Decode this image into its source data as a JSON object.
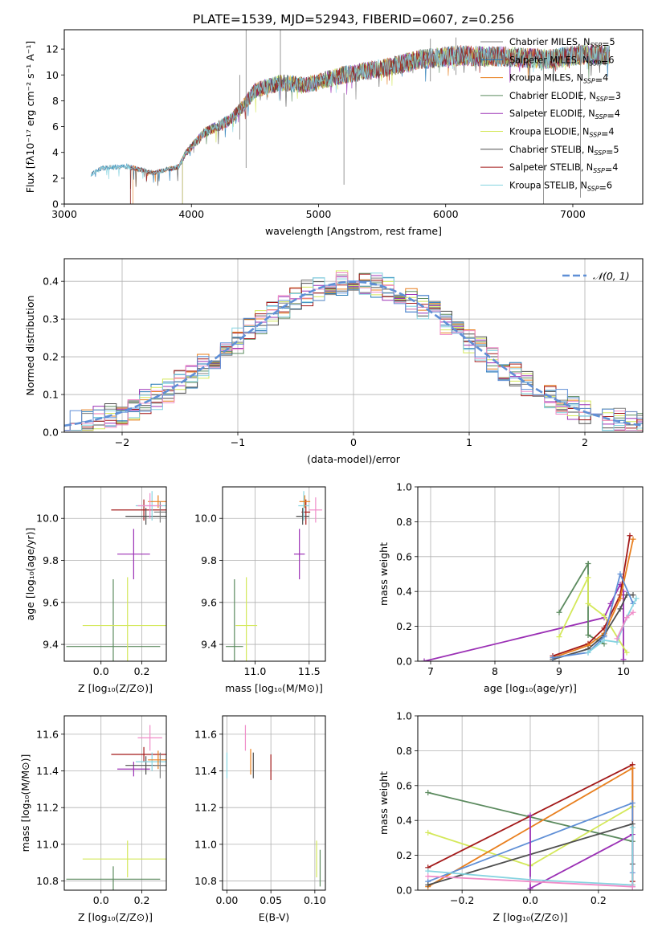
{
  "figure_title": "PLATE=1539, MJD=52943, FIBERID=0607, z=0.256",
  "series_colors": {
    "Chabrier MILES": "#7f7f7f",
    "Salpeter MILES": "#1f77b4",
    "Kroupa MILES": "#e87f1e",
    "Chabrier ELODIE": "#5b8a5e",
    "Salpeter ELODIE": "#9b30b5",
    "Kroupa ELODIE": "#d4e85a",
    "Chabrier STELIB": "#4f4f4f",
    "Salpeter STELIB": "#a31919",
    "Kroupa STELIB": "#86d4e0",
    "extra_pink": "#f08cc8",
    "extra_blue": "#5f8fd6",
    "normal_curve": "#5f8fd6"
  },
  "chart_data": [
    {
      "id": "spectrum",
      "type": "line",
      "xlabel": "wavelength [Angstrom, rest frame]",
      "ylabel": "Flux [fλ10⁻¹⁷ erg cm⁻² s⁻¹ A⁻¹]",
      "xlim": [
        3000,
        7550
      ],
      "ylim": [
        0,
        13.5
      ],
      "xticks": [
        3000,
        4000,
        5000,
        6000,
        7000
      ],
      "yticks": [
        0,
        2,
        4,
        6,
        8,
        10,
        12
      ],
      "legend_position": "top-right",
      "grid": false,
      "continuum": [
        [
          3210,
          2.3
        ],
        [
          3300,
          2.8
        ],
        [
          3500,
          2.9
        ],
        [
          3700,
          2.4
        ],
        [
          3900,
          2.9
        ],
        [
          3960,
          4.0
        ],
        [
          4100,
          5.5
        ],
        [
          4300,
          6.5
        ],
        [
          4400,
          7.5
        ],
        [
          4500,
          8.8
        ],
        [
          4700,
          9.4
        ],
        [
          4900,
          9.2
        ],
        [
          5200,
          10.0
        ],
        [
          5500,
          10.5
        ],
        [
          5800,
          11.2
        ],
        [
          6100,
          11.5
        ],
        [
          6500,
          11.4
        ],
        [
          6800,
          11.2
        ],
        [
          7100,
          11.6
        ],
        [
          7300,
          11.5
        ]
      ],
      "series": [
        {
          "name": "Chabrier MILES",
          "ssp": "5",
          "start": 3210
        },
        {
          "name": "Salpeter MILES",
          "ssp": "6",
          "start": 3210
        },
        {
          "name": "Kroupa MILES",
          "ssp": "4",
          "start": 3540
        },
        {
          "name": "Chabrier ELODIE",
          "ssp": "3",
          "start": 3930
        },
        {
          "name": "Salpeter ELODIE",
          "ssp": "4",
          "start": 3930
        },
        {
          "name": "Kroupa ELODIE",
          "ssp": "4",
          "start": 3930
        },
        {
          "name": "Chabrier STELIB",
          "ssp": "5",
          "start": 3520
        },
        {
          "name": "Salpeter STELIB",
          "ssp": "4",
          "start": 3520
        },
        {
          "name": "Kroupa STELIB",
          "ssp": "6",
          "start": 3210
        }
      ]
    },
    {
      "id": "residual-histogram",
      "type": "line",
      "xlabel": "(data-model)/error",
      "ylabel": "Normed distribution",
      "xlim": [
        -2.5,
        2.5
      ],
      "ylim": [
        0,
        0.46
      ],
      "xticks": [
        -2,
        -1,
        0,
        1,
        2
      ],
      "yticks": [
        0.0,
        0.1,
        0.2,
        0.3,
        0.4
      ],
      "grid": true,
      "legend_position": "top-right",
      "normal_label": "𝒩(0, 1)"
    },
    {
      "id": "age-vs-metallicity",
      "type": "scatter",
      "xlabel": "Z [log₁₀(Z/Z⊙)]",
      "ylabel": "age  [log₁₀(age/yr)]",
      "xlim": [
        -0.18,
        0.32
      ],
      "ylim": [
        9.32,
        10.15
      ],
      "xticks": [
        0.0,
        0.2
      ],
      "yticks": [
        9.4,
        9.6,
        9.8,
        10.0
      ],
      "grid": true,
      "points": [
        {
          "s": "Chabrier ELODIE",
          "x": 0.06,
          "xerr": 0.23,
          "y": 9.39,
          "yerr": 0.32
        },
        {
          "s": "Kroupa ELODIE",
          "x": 0.13,
          "xerr": 0.22,
          "y": 9.49,
          "yerr": 0.23
        },
        {
          "s": "Salpeter ELODIE",
          "x": 0.16,
          "xerr": 0.08,
          "y": 9.83,
          "yerr": 0.12
        },
        {
          "s": "Salpeter STELIB",
          "x": 0.21,
          "xerr": 0.16,
          "y": 10.04,
          "yerr": 0.05
        },
        {
          "s": "Chabrier STELIB",
          "x": 0.22,
          "xerr": 0.1,
          "y": 10.01,
          "yerr": 0.04
        },
        {
          "s": "Kroupa STELIB",
          "x": 0.25,
          "xerr": 0.08,
          "y": 10.06,
          "yerr": 0.07
        },
        {
          "s": "Kroupa MILES",
          "x": 0.28,
          "xerr": 0.05,
          "y": 10.08,
          "yerr": 0.03
        },
        {
          "s": "Chabrier MILES",
          "x": 0.29,
          "xerr": 0.03,
          "y": 10.03,
          "yerr": 0.05
        },
        {
          "s": "extra_pink",
          "x": 0.24,
          "xerr": 0.06,
          "y": 10.06,
          "yerr": 0.06
        }
      ]
    },
    {
      "id": "age-vs-mass",
      "type": "scatter",
      "xlabel": "mass [log₁₀(M/M⊙)]",
      "ylabel": "",
      "xlim": [
        10.7,
        11.65
      ],
      "ylim": [
        9.32,
        10.15
      ],
      "xticks": [
        11.0,
        11.5
      ],
      "yticks": [
        9.4,
        9.6,
        9.8,
        10.0
      ],
      "grid": true,
      "points": [
        {
          "s": "Chabrier ELODIE",
          "x": 10.81,
          "xerr": 0.08,
          "y": 9.39,
          "yerr": 0.32
        },
        {
          "s": "Kroupa ELODIE",
          "x": 10.92,
          "xerr": 0.1,
          "y": 9.49,
          "yerr": 0.23
        },
        {
          "s": "Salpeter ELODIE",
          "x": 11.41,
          "xerr": 0.05,
          "y": 9.83,
          "yerr": 0.12
        },
        {
          "s": "Salpeter STELIB",
          "x": 11.47,
          "xerr": 0.04,
          "y": 10.03,
          "yerr": 0.06
        },
        {
          "s": "Chabrier STELIB",
          "x": 11.44,
          "xerr": 0.06,
          "y": 10.01,
          "yerr": 0.04
        },
        {
          "s": "Kroupa STELIB",
          "x": 11.45,
          "xerr": 0.05,
          "y": 10.06,
          "yerr": 0.07
        },
        {
          "s": "Kroupa MILES",
          "x": 11.46,
          "xerr": 0.05,
          "y": 10.08,
          "yerr": 0.03
        },
        {
          "s": "extra_pink",
          "x": 11.56,
          "xerr": 0.06,
          "y": 10.04,
          "yerr": 0.06
        }
      ]
    },
    {
      "id": "mass-weight-vs-age",
      "type": "line",
      "xlabel": "age  [log₁₀(age/yr)]",
      "ylabel": "mass weight",
      "xlim": [
        6.8,
        10.3
      ],
      "ylim": [
        0,
        1.0
      ],
      "xticks": [
        7,
        8,
        9,
        10
      ],
      "yticks": [
        0.0,
        0.2,
        0.4,
        0.6,
        0.8,
        1.0
      ],
      "grid": true,
      "series": [
        {
          "s": "Salpeter ELODIE",
          "x": [
            6.9,
            9.7,
            9.8,
            9.95,
            10.0,
            10.0
          ],
          "y": [
            0.0,
            0.25,
            0.33,
            0.44,
            0.4,
            0.01
          ]
        },
        {
          "s": "Chabrier ELODIE",
          "x": [
            9.0,
            9.45,
            9.45,
            9.7
          ],
          "y": [
            0.28,
            0.56,
            0.15,
            0.1
          ]
        },
        {
          "s": "Kroupa ELODIE",
          "x": [
            9.0,
            9.45,
            9.45,
            9.7,
            10.05
          ],
          "y": [
            0.14,
            0.48,
            0.33,
            0.26,
            0.05
          ]
        },
        {
          "s": "Salpeter STELIB",
          "x": [
            8.9,
            9.45,
            9.7,
            9.95,
            10.1
          ],
          "y": [
            0.03,
            0.1,
            0.19,
            0.38,
            0.72
          ]
        },
        {
          "s": "Kroupa MILES",
          "x": [
            8.9,
            9.45,
            9.7,
            9.95,
            10.15
          ],
          "y": [
            0.02,
            0.09,
            0.16,
            0.36,
            0.7
          ]
        },
        {
          "s": "Chabrier STELIB",
          "x": [
            8.9,
            9.45,
            9.7,
            9.95,
            10.05,
            10.15
          ],
          "y": [
            0.01,
            0.07,
            0.15,
            0.3,
            0.38,
            0.38
          ]
        },
        {
          "s": "extra_blue",
          "x": [
            8.9,
            9.45,
            9.7,
            9.95,
            10.15
          ],
          "y": [
            0.02,
            0.05,
            0.14,
            0.5,
            0.33
          ]
        },
        {
          "s": "Kroupa STELIB",
          "x": [
            9.45,
            9.7,
            9.9,
            10.05,
            10.2
          ],
          "y": [
            0.05,
            0.12,
            0.11,
            0.25,
            0.36
          ]
        },
        {
          "s": "extra_pink",
          "x": [
            9.9,
            10.05,
            10.15
          ],
          "y": [
            0.13,
            0.25,
            0.28
          ]
        }
      ]
    },
    {
      "id": "mass-vs-metallicity",
      "type": "scatter",
      "xlabel": "Z [log₁₀(Z/Z⊙)]",
      "ylabel": "mass [log₁₀(M/M⊙)]",
      "xlim": [
        -0.18,
        0.32
      ],
      "ylim": [
        10.75,
        11.7
      ],
      "xticks": [
        0.0,
        0.2
      ],
      "yticks": [
        10.8,
        11.0,
        11.2,
        11.4,
        11.6
      ],
      "grid": true,
      "points": [
        {
          "s": "Chabrier ELODIE",
          "x": 0.06,
          "xerr": 0.23,
          "y": 10.81,
          "yerr": 0.07
        },
        {
          "s": "Kroupa ELODIE",
          "x": 0.13,
          "xerr": 0.22,
          "y": 10.92,
          "yerr": 0.1
        },
        {
          "s": "Salpeter ELODIE",
          "x": 0.16,
          "xerr": 0.08,
          "y": 11.41,
          "yerr": 0.04
        },
        {
          "s": "Salpeter STELIB",
          "x": 0.21,
          "xerr": 0.16,
          "y": 11.49,
          "yerr": 0.04
        },
        {
          "s": "Chabrier STELIB",
          "x": 0.22,
          "xerr": 0.1,
          "y": 11.43,
          "yerr": 0.05
        },
        {
          "s": "Kroupa STELIB",
          "x": 0.25,
          "xerr": 0.08,
          "y": 11.45,
          "yerr": 0.05
        },
        {
          "s": "Kroupa MILES",
          "x": 0.28,
          "xerr": 0.05,
          "y": 11.46,
          "yerr": 0.05
        },
        {
          "s": "Chabrier MILES",
          "x": 0.29,
          "xerr": 0.03,
          "y": 11.43,
          "yerr": 0.07
        },
        {
          "s": "extra_pink",
          "x": 0.24,
          "xerr": 0.06,
          "y": 11.58,
          "yerr": 0.07
        }
      ]
    },
    {
      "id": "mass-vs-extinction",
      "type": "scatter",
      "xlabel": "E(B-V)",
      "ylabel": "",
      "xlim": [
        -0.005,
        0.112
      ],
      "ylim": [
        10.75,
        11.7
      ],
      "xticks": [
        0.0,
        0.05,
        0.1
      ],
      "yticks": [
        10.8,
        11.0,
        11.2,
        11.4,
        11.6
      ],
      "grid": true,
      "points": [
        {
          "s": "Kroupa STELIB",
          "x": 0.0,
          "xerr": 0.0,
          "y": 11.43,
          "yerr": 0.07
        },
        {
          "s": "extra_pink",
          "x": 0.021,
          "xerr": 0.0,
          "y": 11.58,
          "yerr": 0.07
        },
        {
          "s": "Kroupa MILES",
          "x": 0.027,
          "xerr": 0.0,
          "y": 11.45,
          "yerr": 0.07
        },
        {
          "s": "Chabrier STELIB",
          "x": 0.03,
          "xerr": 0.0,
          "y": 11.43,
          "yerr": 0.07
        },
        {
          "s": "Salpeter STELIB",
          "x": 0.05,
          "xerr": 0.0,
          "y": 11.42,
          "yerr": 0.07
        },
        {
          "s": "Kroupa ELODIE",
          "x": 0.102,
          "xerr": 0.0,
          "y": 10.92,
          "yerr": 0.1
        },
        {
          "s": "Chabrier ELODIE",
          "x": 0.106,
          "xerr": 0.0,
          "y": 10.87,
          "yerr": 0.1
        }
      ]
    },
    {
      "id": "mass-weight-vs-metallicity",
      "type": "line",
      "xlabel": "Z [log₁₀(Z/Z⊙)]",
      "ylabel": "mass weight",
      "xlim": [
        -0.33,
        0.33
      ],
      "ylim": [
        0,
        1.0
      ],
      "xticks": [
        -0.2,
        0.0,
        0.2
      ],
      "yticks": [
        0.0,
        0.2,
        0.4,
        0.6,
        0.8,
        1.0
      ],
      "grid": true,
      "series": [
        {
          "s": "Chabrier ELODIE",
          "x": [
            -0.3,
            0.3
          ],
          "y": [
            0.56,
            0.28
          ]
        },
        {
          "s": "Kroupa ELODIE",
          "x": [
            -0.3,
            0.0,
            0.3
          ],
          "y": [
            0.33,
            0.14,
            0.48
          ]
        },
        {
          "s": "Salpeter STELIB",
          "x": [
            -0.3,
            0.3,
            0.3
          ],
          "y": [
            0.13,
            0.72,
            0.05
          ]
        },
        {
          "s": "Kroupa MILES",
          "x": [
            -0.3,
            0.3,
            0.3
          ],
          "y": [
            0.02,
            0.7,
            0.03
          ]
        },
        {
          "s": "extra_blue",
          "x": [
            -0.3,
            0.3,
            0.3
          ],
          "y": [
            0.05,
            0.5,
            0.1
          ]
        },
        {
          "s": "Chabrier STELIB",
          "x": [
            -0.3,
            0.3,
            0.3
          ],
          "y": [
            0.03,
            0.38,
            0.15
          ]
        },
        {
          "s": "Salpeter ELODIE",
          "x": [
            0.0,
            0.0,
            0.0,
            0.3,
            0.3
          ],
          "y": [
            0.0,
            0.43,
            0.01,
            0.32,
            0.02
          ]
        },
        {
          "s": "Kroupa STELIB",
          "x": [
            -0.3,
            0.0,
            0.3,
            0.3
          ],
          "y": [
            0.11,
            0.06,
            0.03,
            0.36
          ]
        },
        {
          "s": "extra_pink",
          "x": [
            -0.3,
            0.0,
            0.3
          ],
          "y": [
            0.08,
            0.05,
            0.02
          ]
        }
      ]
    }
  ]
}
